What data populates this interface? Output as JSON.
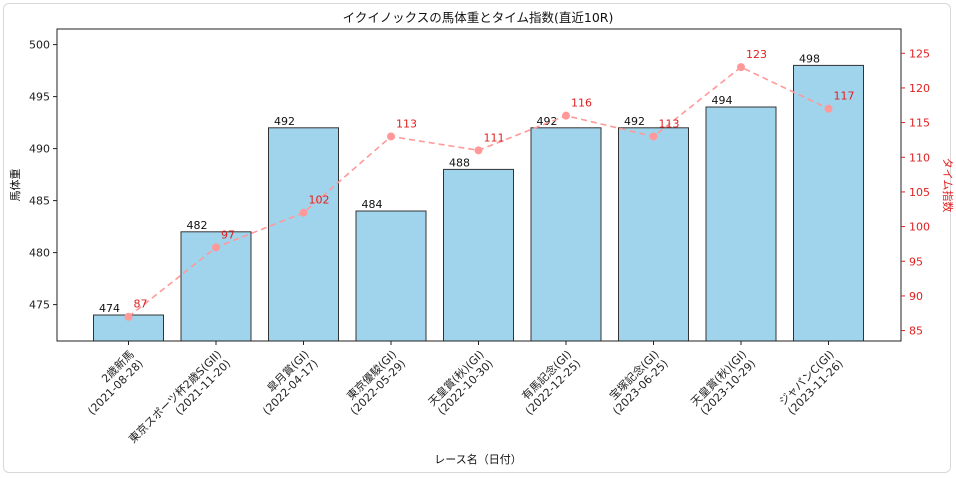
{
  "chart_data": {
    "type": "bar+line",
    "title": "イクイノックスの馬体重とタイム指数(直近10R)",
    "xlabel": "レース名（日付）",
    "ylabel_left": "馬体重",
    "ylabel_right": "タイム指数",
    "ylim_left": [
      471.5,
      501.5
    ],
    "ylim_right": [
      83.5,
      128.5
    ],
    "yticks_left": [
      475,
      480,
      485,
      490,
      495,
      500
    ],
    "yticks_right": [
      85,
      90,
      95,
      100,
      105,
      110,
      115,
      120,
      125
    ],
    "categories": [
      [
        "2歳新馬",
        "(2021-08-28)"
      ],
      [
        "東京スポーツ杯2歳S(GII)",
        "(2021-11-20)"
      ],
      [
        "皐月賞(GI)",
        "(2022-04-17)"
      ],
      [
        "東京優駿(GI)",
        "(2022-05-29)"
      ],
      [
        "天皇賞(秋)(GI)",
        "(2022-10-30)"
      ],
      [
        "有馬記念(GI)",
        "(2022-12-25)"
      ],
      [
        "宝塚記念(GI)",
        "(2023-06-25)"
      ],
      [
        "天皇賞(秋)(GI)",
        "(2023-10-29)"
      ],
      [
        "ジャパンC(GI)",
        "(2023-11-26)"
      ]
    ],
    "series": [
      {
        "name": "馬体重",
        "type": "bar",
        "axis": "left",
        "color": "#a0d4ec",
        "edge": "#333333",
        "values": [
          474,
          482,
          492,
          484,
          488,
          492,
          492,
          494,
          498
        ]
      },
      {
        "name": "タイム指数",
        "type": "line",
        "axis": "right",
        "color": "#ff9999",
        "values": [
          87,
          97,
          102,
          113,
          111,
          116,
          113,
          123,
          117
        ]
      }
    ]
  }
}
